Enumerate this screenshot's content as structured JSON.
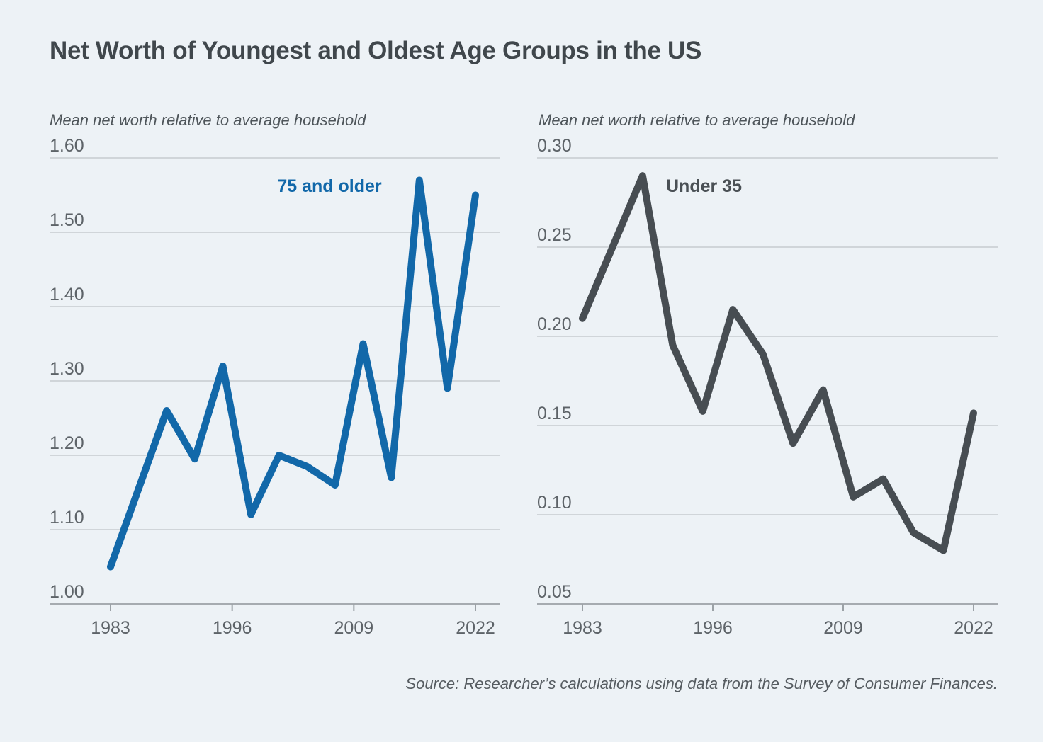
{
  "page": {
    "title": "Net Worth of Youngest and Oldest Age Groups in the US",
    "source_note": "Source: Researcher’s calculations using data from the Survey of Consumer Finances.",
    "background_color": "#edf2f6"
  },
  "chart_data": [
    {
      "type": "line",
      "panel": "left",
      "subtitle": "Mean net worth relative to average household",
      "series_label": "75 and older",
      "line_color": "#1268a9",
      "label_color": "#1268a9",
      "x": [
        1983,
        1989,
        1992,
        1995,
        1998,
        2001,
        2004,
        2007,
        2010,
        2013,
        2016,
        2019,
        2022
      ],
      "values": [
        1.05,
        1.26,
        1.195,
        1.32,
        1.12,
        1.2,
        1.185,
        1.16,
        1.35,
        1.17,
        1.57,
        1.29,
        1.55
      ],
      "ylim": [
        1.0,
        1.6
      ],
      "yticks": [
        "1.60",
        "1.50",
        "1.40",
        "1.30",
        "1.20",
        "1.10",
        "1.00"
      ],
      "xticks": [
        "1983",
        "1996",
        "2009",
        "2022"
      ],
      "xlim": [
        1983,
        2022
      ],
      "grid": true,
      "legend_position": "inside-top-left-of-peak"
    },
    {
      "type": "line",
      "panel": "right",
      "subtitle": "Mean net worth relative to average household",
      "series_label": "Under 35",
      "line_color": "#474d52",
      "label_color": "#4a5055",
      "x": [
        1983,
        1989,
        1992,
        1995,
        1998,
        2001,
        2004,
        2007,
        2010,
        2013,
        2016,
        2019,
        2022
      ],
      "values": [
        0.21,
        0.29,
        0.195,
        0.158,
        0.215,
        0.19,
        0.14,
        0.17,
        0.11,
        0.12,
        0.09,
        0.08,
        0.157
      ],
      "ylim": [
        0.05,
        0.3
      ],
      "yticks": [
        "0.30",
        "0.25",
        "0.20",
        "0.15",
        "0.10",
        "0.05"
      ],
      "xticks": [
        "1983",
        "1996",
        "2009",
        "2022"
      ],
      "xlim": [
        1983,
        2022
      ],
      "grid": true,
      "legend_position": "inside-top-right-of-peak"
    }
  ]
}
